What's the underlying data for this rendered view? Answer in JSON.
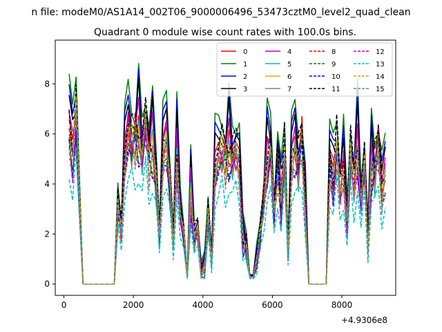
{
  "figure": {
    "suptitle": "n file: modeM0/AS1A14_002T06_9000006496_53473cztM0_level2_quad_clean",
    "offset_label": "+4.9306e8"
  },
  "chart_data": {
    "type": "line",
    "title": "Quadrant 0 module wise count rates with 100.0s bins.",
    "xlabel": "",
    "ylabel": "",
    "x_offset": 493060000,
    "xlim": [
      -250,
      9550
    ],
    "ylim": [
      -0.45,
      9.75
    ],
    "x_ticks": [
      0,
      2000,
      4000,
      6000,
      8000
    ],
    "x_tick_labels": [
      "0",
      "2000",
      "4000",
      "6000",
      "8000"
    ],
    "y_ticks": [
      0,
      2,
      4,
      6,
      8
    ],
    "y_tick_labels": [
      "0",
      "2",
      "4",
      "6",
      "8"
    ],
    "grid": false,
    "legend_placement": "top-right",
    "legend_columns": 4,
    "x": [
      150,
      250,
      350,
      550,
      650,
      750,
      850,
      950,
      1050,
      1150,
      1250,
      1350,
      1450,
      1550,
      1650,
      1750,
      1850,
      1950,
      2050,
      2150,
      2250,
      2350,
      2450,
      2550,
      2650,
      2750,
      2850,
      2950,
      3050,
      3150,
      3250,
      3350,
      3450,
      3550,
      3650,
      3750,
      3850,
      3950,
      4050,
      4150,
      4250,
      4350,
      4450,
      4550,
      4650,
      4750,
      4850,
      4950,
      5050,
      5150,
      5250,
      5350,
      5450,
      5550,
      5650,
      5750,
      5850,
      5950,
      6050,
      6150,
      6250,
      6350,
      6450,
      6550,
      6650,
      6750,
      6850,
      6950,
      7050,
      7150,
      7250,
      7350,
      7450,
      7550,
      7650,
      7750,
      7850,
      7950,
      8050,
      8150,
      8250,
      8350,
      8450,
      8550,
      8650,
      8750,
      8850,
      8950,
      9050,
      9150,
      9250
    ],
    "series": [
      {
        "name": "0",
        "color": "#ff0000",
        "dash": "solid",
        "level": 6.1,
        "shift": 0.0,
        "gap": 0.25
      },
      {
        "name": "1",
        "color": "#008000",
        "dash": "solid",
        "level": 7.6,
        "shift": 0.1,
        "gap": 0.2
      },
      {
        "name": "2",
        "color": "#0000ff",
        "dash": "solid",
        "level": 7.2,
        "shift": 0.2,
        "gap": 0.22
      },
      {
        "name": "3",
        "color": "#000000",
        "dash": "solid",
        "level": 6.9,
        "shift": 0.3,
        "gap": 0.24
      },
      {
        "name": "4",
        "color": "#bf00bf",
        "dash": "solid",
        "level": 6.4,
        "shift": 0.4,
        "gap": 0.26
      },
      {
        "name": "5",
        "color": "#00bfbf",
        "dash": "solid",
        "level": 5.9,
        "shift": 0.5,
        "gap": 0.28
      },
      {
        "name": "6",
        "color": "#bfbf00",
        "dash": "solid",
        "level": 6.0,
        "shift": 0.6,
        "gap": 0.27
      },
      {
        "name": "7",
        "color": "#808080",
        "dash": "solid",
        "level": 5.8,
        "shift": 0.7,
        "gap": 0.29
      },
      {
        "name": "8",
        "color": "#ff0000",
        "dash": "dashed",
        "level": 6.0,
        "shift": 0.8,
        "gap": 0.27
      },
      {
        "name": "9",
        "color": "#008000",
        "dash": "dashed",
        "level": 5.6,
        "shift": 0.9,
        "gap": 0.29
      },
      {
        "name": "10",
        "color": "#0000ff",
        "dash": "dashed",
        "level": 5.5,
        "shift": 1.0,
        "gap": 0.3
      },
      {
        "name": "11",
        "color": "#000000",
        "dash": "dashed",
        "level": 6.7,
        "shift": 1.1,
        "gap": 0.25
      },
      {
        "name": "12",
        "color": "#bf00bf",
        "dash": "dashed",
        "level": 5.4,
        "shift": 1.2,
        "gap": 0.3
      },
      {
        "name": "13",
        "color": "#00bfbf",
        "dash": "dashed",
        "level": 4.3,
        "shift": 1.3,
        "gap": 0.35
      },
      {
        "name": "14",
        "color": "#bfbf00",
        "dash": "dashed",
        "level": 5.9,
        "shift": 1.4,
        "gap": 0.27
      },
      {
        "name": "15",
        "color": "#808080",
        "dash": "dashed",
        "level": 5.7,
        "shift": 1.5,
        "gap": 0.28
      }
    ],
    "profile": [
      1.0,
      0.93,
      1.06,
      0.0,
      0.0,
      0.0,
      0.0,
      0.0,
      0.0,
      0.0,
      0.0,
      0.0,
      0.0,
      0.6,
      0.5,
      0.85,
      1.06,
      0.93,
      0.96,
      1.0,
      0.9,
      1.04,
      0.85,
      0.96,
      0.76,
      0.47,
      0.88,
      1.0,
      0.7,
      0.45,
      0.88,
      0.6,
      0.45,
      0.15,
      0.7,
      0.45,
      0.5,
      0.25,
      0.3,
      0.55,
      0.35,
      0.8,
      0.92,
      0.88,
      0.85,
      0.92,
      0.88,
      0.9,
      0.85,
      0.45,
      0.4,
      0.1,
      0.18,
      0.35,
      0.45,
      0.65,
      0.85,
      0.95,
      0.55,
      0.85,
      0.65,
      0.9,
      0.38,
      0.85,
      0.95,
      0.82,
      0.96,
      0.6,
      0.0,
      0.0,
      0.0,
      0.0,
      0.0,
      0.0,
      0.85,
      0.78,
      0.9,
      0.72,
      0.8,
      0.55,
      0.85,
      0.75,
      0.92,
      0.65,
      0.82,
      0.45,
      0.85,
      0.8,
      0.92,
      0.68,
      0.82
    ]
  }
}
